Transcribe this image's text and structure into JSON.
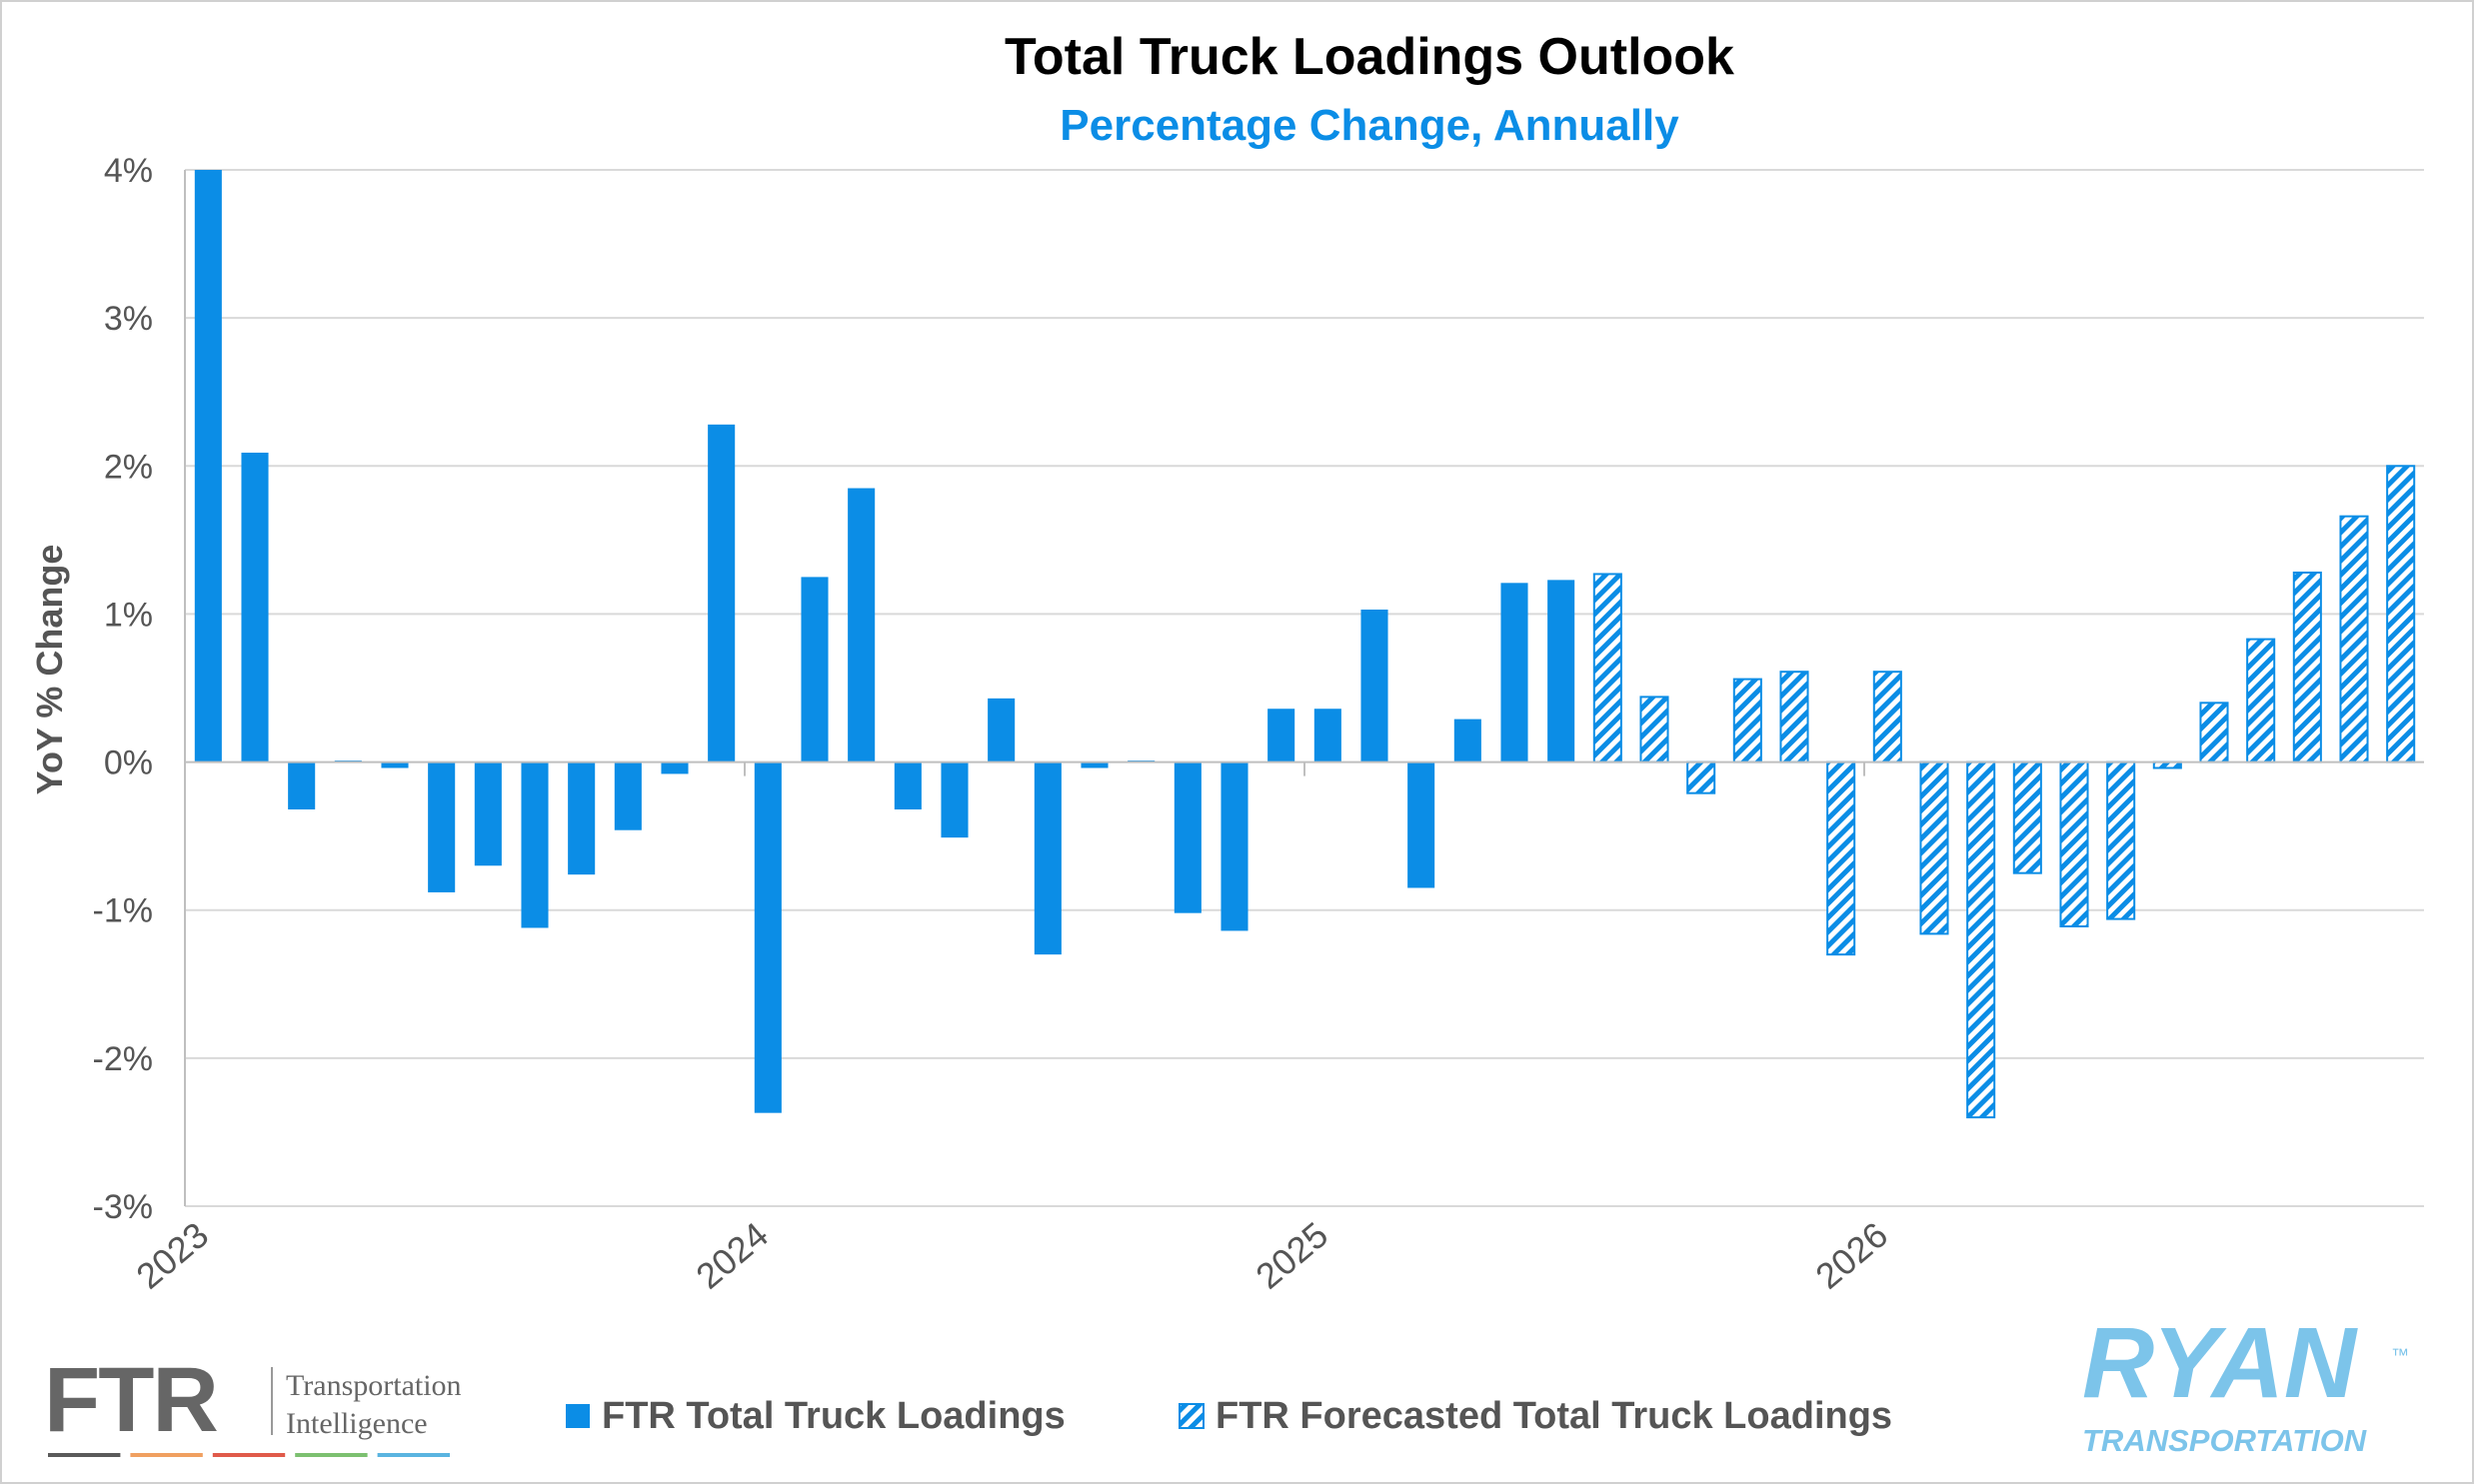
{
  "chart_data": {
    "type": "bar",
    "title": "Total Truck Loadings Outlook",
    "subtitle": "Percentage Change, Annually",
    "ylabel": "YoY % Change",
    "ylim": [
      -3,
      4
    ],
    "yticks": [
      {
        "value": 4,
        "label": "4%"
      },
      {
        "value": 3,
        "label": "3%"
      },
      {
        "value": 2,
        "label": "2%"
      },
      {
        "value": 1,
        "label": "1%"
      },
      {
        "value": 0,
        "label": "0%"
      },
      {
        "value": -1,
        "label": "-1%"
      },
      {
        "value": -2,
        "label": "-2%"
      },
      {
        "value": -3,
        "label": "-3%"
      }
    ],
    "xticks": [
      {
        "index": 0,
        "label": "2023"
      },
      {
        "index": 12,
        "label": "2024"
      },
      {
        "index": 24,
        "label": "2025"
      },
      {
        "index": 36,
        "label": "2026"
      }
    ],
    "grid": true,
    "legend_position": "bottom",
    "series": [
      {
        "name": "FTR Total Truck Loadings",
        "color": "#0b8de6",
        "pattern": "solid",
        "start_index": 0,
        "values": [
          4.0,
          2.09,
          -0.32,
          0.01,
          -0.04,
          -0.88,
          -0.7,
          -1.12,
          -0.76,
          -0.46,
          -0.08,
          2.28,
          -2.37,
          1.25,
          1.85,
          -0.32,
          -0.51,
          0.43,
          -1.3,
          -0.04,
          0.01,
          -1.02,
          -1.14,
          0.36,
          0.36,
          1.03,
          -0.85,
          0.29,
          1.21,
          1.23
        ]
      },
      {
        "name": "FTR Forecasted Total Truck Loadings",
        "color": "#0b8de6",
        "pattern": "hatched",
        "start_index": 30,
        "values": [
          1.27,
          0.44,
          -0.21,
          0.56,
          0.61,
          -1.3,
          0.61,
          -1.16,
          -2.4,
          -0.75,
          -1.11,
          -1.06,
          -0.04,
          0.4,
          0.83,
          1.28,
          1.66,
          2.0
        ]
      }
    ],
    "n_periods": 48
  },
  "branding": {
    "ftr_logo": {
      "letters": "FTR",
      "line1": "Transportation",
      "line2": "Intelligence",
      "stripe_colors": [
        "#5a5a5a",
        "#f0a060",
        "#e05a4a",
        "#7cc070",
        "#5ab4e0"
      ]
    },
    "ryan_logo": {
      "word": "RYAN",
      "tagline": "TRANSPORTATION",
      "trademark": "™",
      "color": "#7cc4ea"
    }
  },
  "colors": {
    "title": "#000000",
    "subtitle": "#0b8de6",
    "axis_text": "#555555",
    "grid": "#d9d9d9"
  }
}
